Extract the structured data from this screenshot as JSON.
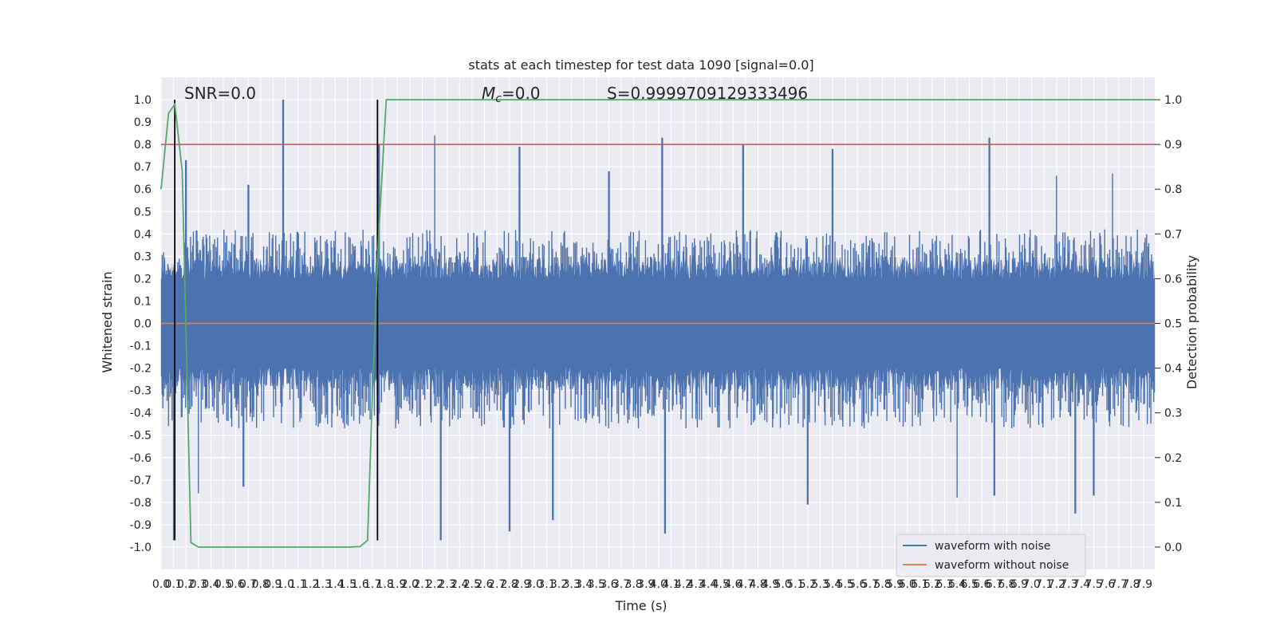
{
  "chart_data": {
    "type": "line",
    "title": "stats at each timestep for test data 1090 [signal=0.0]",
    "xlabel": "Time (s)",
    "ylabel": "Whitened strain",
    "y2label": "Detection probability",
    "xlim": [
      0.0,
      7.99
    ],
    "ylim": [
      -1.1,
      1.1
    ],
    "y2lim": [
      -0.05,
      1.05
    ],
    "x_ticks": [
      0.0,
      0.1,
      0.2,
      0.3,
      0.4,
      0.5,
      0.6,
      0.7,
      0.8,
      0.9,
      1.0,
      1.1,
      1.2,
      1.3,
      1.4,
      1.5,
      1.6,
      1.7,
      1.8,
      1.9,
      2.0,
      2.1,
      2.2,
      2.3,
      2.4,
      2.5,
      2.6,
      2.7,
      2.8,
      2.9,
      3.0,
      3.1,
      3.2,
      3.3,
      3.4,
      3.5,
      3.6,
      3.7,
      3.8,
      3.9,
      4.0,
      4.1,
      4.2,
      4.3,
      4.4,
      4.5,
      4.6,
      4.7,
      4.8,
      4.9,
      5.0,
      5.1,
      5.2,
      5.3,
      5.4,
      5.5,
      5.6,
      5.7,
      5.8,
      5.9,
      6.0,
      6.1,
      6.2,
      6.3,
      6.4,
      6.5,
      6.6,
      6.7,
      6.8,
      6.9,
      7.0,
      7.1,
      7.2,
      7.3,
      7.4,
      7.5,
      7.6,
      7.7,
      7.8,
      7.9
    ],
    "y_ticks": [
      -1.0,
      -0.9,
      -0.8,
      -0.7,
      -0.6,
      -0.5,
      -0.4,
      -0.3,
      -0.2,
      -0.1,
      0.0,
      0.1,
      0.2,
      0.3,
      0.4,
      0.5,
      0.6,
      0.7,
      0.8,
      0.9,
      1.0
    ],
    "y2_ticks": [
      0.0,
      0.1,
      0.2,
      0.3,
      0.4,
      0.5,
      0.6,
      0.7,
      0.8,
      0.9,
      1.0
    ],
    "grid": true,
    "legend_position": "lower-right",
    "annotations": {
      "snr": "SNR=0.0",
      "mc": "$M_c$=0.0",
      "mc_base": "M",
      "mc_sub": "c",
      "mc_rest": "=0.0",
      "s": "S=0.9999709129333496"
    },
    "series": [
      {
        "name": "waveform with noise",
        "color": "#4c72b0",
        "note_envelope_peaks": {
          "positive_spikes": [
            [
              0.98,
              1.0
            ],
            [
              0.2,
              0.73
            ],
            [
              0.7,
              0.62
            ],
            [
              1.75,
              0.8
            ],
            [
              2.2,
              0.84
            ],
            [
              2.88,
              0.79
            ],
            [
              3.6,
              0.68
            ],
            [
              4.03,
              0.83
            ],
            [
              4.68,
              0.8
            ],
            [
              5.4,
              0.78
            ],
            [
              6.66,
              0.83
            ],
            [
              7.2,
              0.66
            ],
            [
              7.65,
              0.67
            ]
          ],
          "negative_spikes": [
            [
              0.1,
              -0.97
            ],
            [
              0.3,
              -0.76
            ],
            [
              0.66,
              -0.73
            ],
            [
              2.25,
              -0.97
            ],
            [
              2.8,
              -0.93
            ],
            [
              3.15,
              -0.88
            ],
            [
              4.05,
              -0.94
            ],
            [
              5.2,
              -0.81
            ],
            [
              6.4,
              -0.78
            ],
            [
              6.7,
              -0.77
            ],
            [
              7.35,
              -0.85
            ],
            [
              7.5,
              -0.77
            ]
          ]
        }
      },
      {
        "name": "waveform without noise",
        "color": "#dd8452",
        "values_constant": 0.0
      },
      {
        "name": "detection probability",
        "color": "#55a868",
        "axis": "right",
        "x": [
          0.0,
          0.06,
          0.11,
          0.17,
          0.24,
          0.3,
          1.5,
          1.6,
          1.66,
          1.7,
          1.75,
          1.81,
          7.99
        ],
        "y": [
          0.8,
          0.97,
          0.99,
          0.84,
          0.01,
          0.0,
          0.0,
          0.001,
          0.015,
          0.35,
          0.7,
          1.0,
          1.0
        ]
      }
    ],
    "threshold": {
      "value": 0.9,
      "axis": "right",
      "color": "#c44e52"
    },
    "markers": {
      "x": [
        0.11,
        1.74
      ],
      "color": "#000000"
    }
  }
}
